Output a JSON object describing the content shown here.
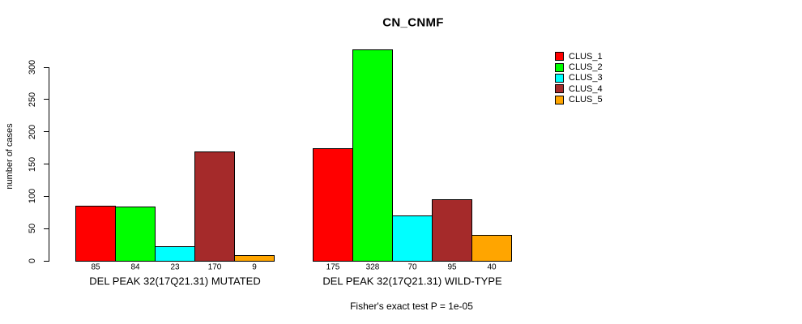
{
  "title": "CN_CNMF",
  "footnote": "Fisher's exact test P = 1e-05",
  "chart_data": {
    "type": "bar",
    "title": "CN_CNMF",
    "xlabel": "",
    "ylabel": "number of cases",
    "ylim": [
      0,
      330
    ],
    "yticks": [
      0,
      50,
      100,
      150,
      200,
      250,
      300
    ],
    "grid": false,
    "legend_position": "top-right",
    "bar_value_labels_shown": true,
    "series": [
      {
        "name": "CLUS_1",
        "color": "#FF0000"
      },
      {
        "name": "CLUS_2",
        "color": "#00FF00"
      },
      {
        "name": "CLUS_3",
        "color": "#00FFFF"
      },
      {
        "name": "CLUS_4",
        "color": "#A52A2A"
      },
      {
        "name": "CLUS_5",
        "color": "#FFA500"
      }
    ],
    "groups": [
      {
        "label": "DEL PEAK 32(17Q21.31) MUTATED",
        "values": [
          85,
          84,
          23,
          170,
          9
        ]
      },
      {
        "label": "DEL PEAK 32(17Q21.31) WILD-TYPE",
        "values": [
          175,
          328,
          70,
          95,
          40
        ]
      }
    ]
  }
}
